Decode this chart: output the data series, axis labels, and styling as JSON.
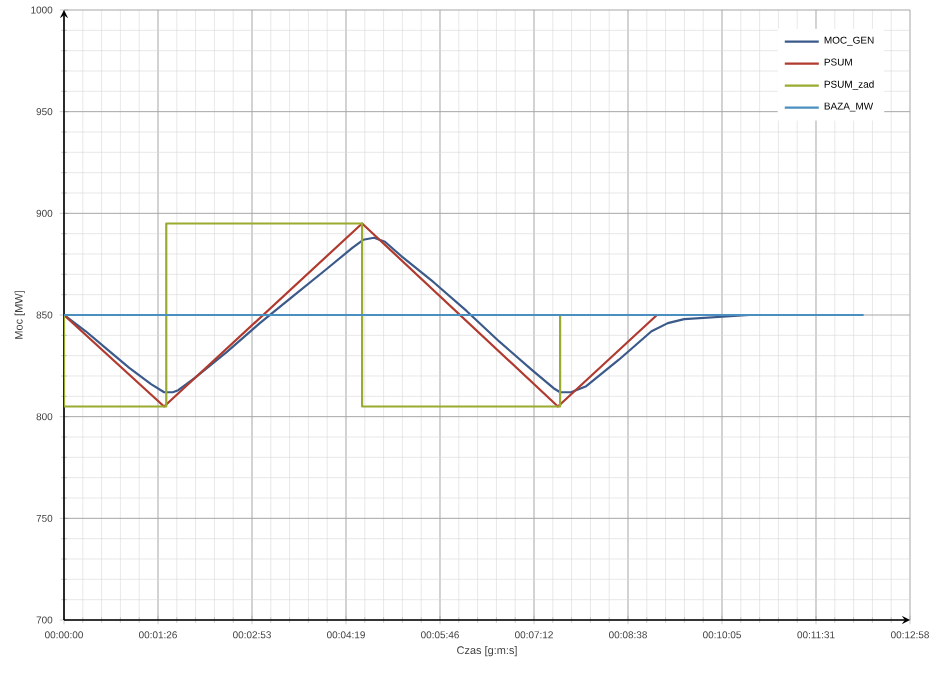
{
  "chart_data": {
    "type": "line",
    "xlabel": "Czas [g:m:s]",
    "ylabel": "Moc [MW]",
    "xlim": [
      0,
      777.6
    ],
    "ylim": [
      700,
      1000
    ],
    "xticks": [
      {
        "value": 0,
        "label": "00:00:00"
      },
      {
        "value": 86.4,
        "label": "00:01:26"
      },
      {
        "value": 172.8,
        "label": "00:02:53"
      },
      {
        "value": 259.2,
        "label": "00:04:19"
      },
      {
        "value": 345.6,
        "label": "00:05:46"
      },
      {
        "value": 432,
        "label": "00:07:12"
      },
      {
        "value": 518.4,
        "label": "00:08:38"
      },
      {
        "value": 604.8,
        "label": "00:10:05"
      },
      {
        "value": 691.2,
        "label": "00:11:31"
      },
      {
        "value": 777.6,
        "label": "00:12:58"
      }
    ],
    "yticks": [
      700,
      750,
      800,
      850,
      900,
      950,
      1000
    ],
    "grid": true,
    "legend": "top right",
    "marker": "none",
    "line_style": "solid",
    "series": [
      {
        "name": "MOC_GEN",
        "color": "#3b5a8a",
        "x": [
          0,
          20,
          40,
          60,
          80,
          92,
          100,
          105,
          120,
          150,
          180,
          210,
          240,
          265,
          275,
          285,
          295,
          310,
          340,
          370,
          400,
          430,
          450,
          456,
          466,
          480,
          510,
          540,
          555,
          570,
          600,
          630,
          650
        ],
        "values": [
          850,
          842,
          833,
          824,
          816,
          812,
          812,
          813,
          819,
          832,
          846,
          859,
          872,
          883,
          887,
          888,
          886,
          879,
          866,
          852,
          837,
          823,
          814,
          812,
          812,
          815,
          828,
          842,
          846,
          848,
          849,
          850,
          850
        ]
      },
      {
        "name": "PSUM",
        "color": "#b03a2e",
        "x": [
          0,
          92,
          274,
          454,
          545
        ],
        "values": [
          850,
          805,
          895,
          805,
          850
        ]
      },
      {
        "name": "PSUM_zad",
        "color": "#9aab2f",
        "x": [
          0,
          0,
          94,
          94,
          274,
          274,
          456,
          456
        ],
        "values": [
          850,
          805,
          805,
          895,
          895,
          805,
          805,
          850
        ]
      },
      {
        "name": "BAZA_MW",
        "color": "#4a8fc0",
        "x": [
          0,
          735
        ],
        "values": [
          850,
          850
        ]
      }
    ]
  }
}
